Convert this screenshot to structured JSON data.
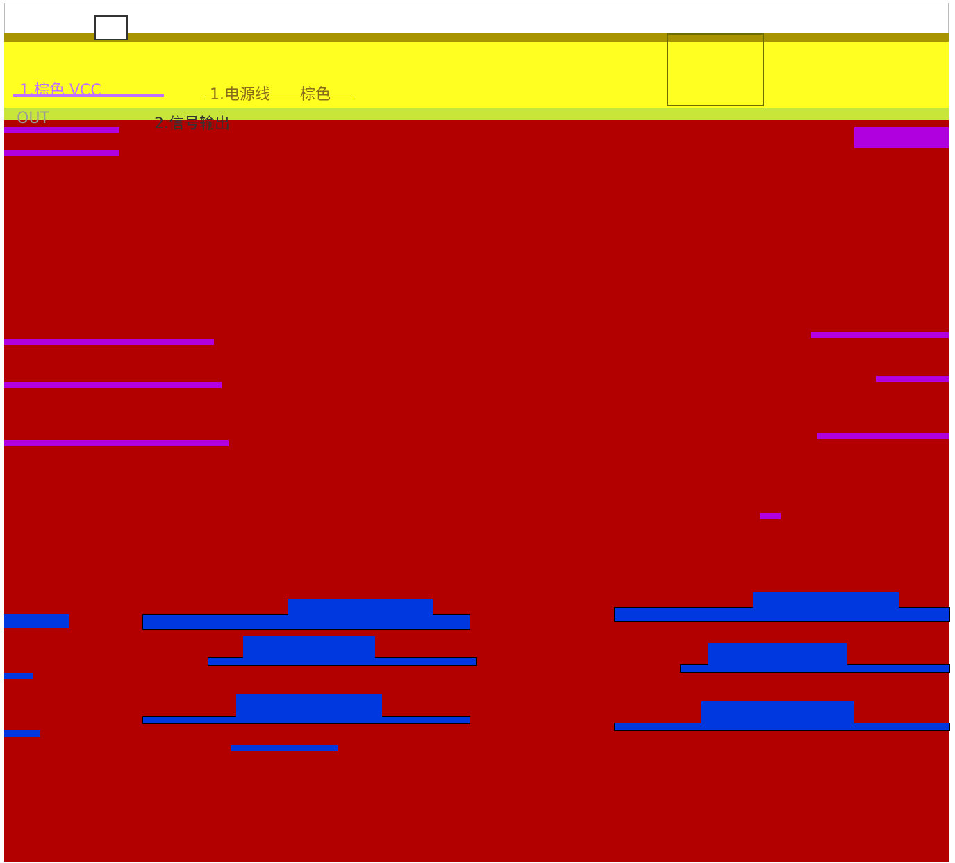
{
  "labels": {
    "left_color": "1.棕色 VCC",
    "power_line": "1.电源线",
    "power_color": "棕色",
    "out": "OUT",
    "signal_out": "2.信号输出"
  }
}
